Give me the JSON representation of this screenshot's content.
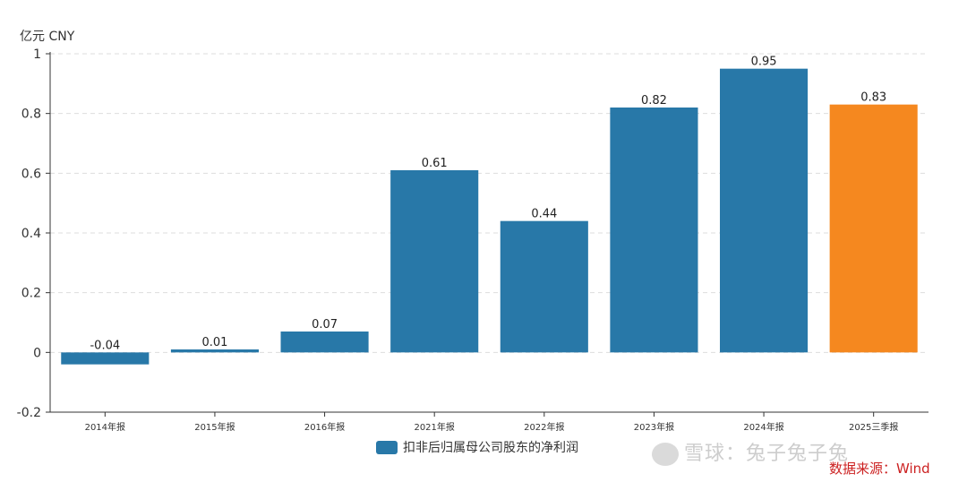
{
  "unit_label": "亿元  CNY",
  "legend": {
    "label": "扣非后归属母公司股东的净利润",
    "color": "#2878a8"
  },
  "watermark": "雪球：兔子兔子兔",
  "source": "数据来源：Wind",
  "chart_data": {
    "type": "bar",
    "categories": [
      "2014年报",
      "2015年报",
      "2016年报",
      "2021年报",
      "2022年报",
      "2023年报",
      "2024年报",
      "2025三季报"
    ],
    "series": [
      {
        "name": "扣非后归属母公司股东的净利润",
        "values": [
          -0.04,
          0.01,
          0.07,
          0.61,
          0.44,
          0.82,
          0.95,
          0.83
        ]
      }
    ],
    "data_labels": [
      "-0.04",
      "0.01",
      "0.07",
      "0.61",
      "0.44",
      "0.82",
      "0.95",
      "0.83"
    ],
    "bar_colors": [
      "#2878a8",
      "#2878a8",
      "#2878a8",
      "#2878a8",
      "#2878a8",
      "#2878a8",
      "#2878a8",
      "#f5881f"
    ],
    "ylim": [
      -0.2,
      1
    ],
    "yticks": [
      -0.2,
      0,
      0.2,
      0.4,
      0.6,
      0.8,
      1
    ],
    "ytick_labels": [
      "-0.2",
      "0",
      "0.2",
      "0.4",
      "0.6",
      "0.8",
      "1"
    ],
    "grid": true,
    "legend_position": "bottom-center"
  }
}
